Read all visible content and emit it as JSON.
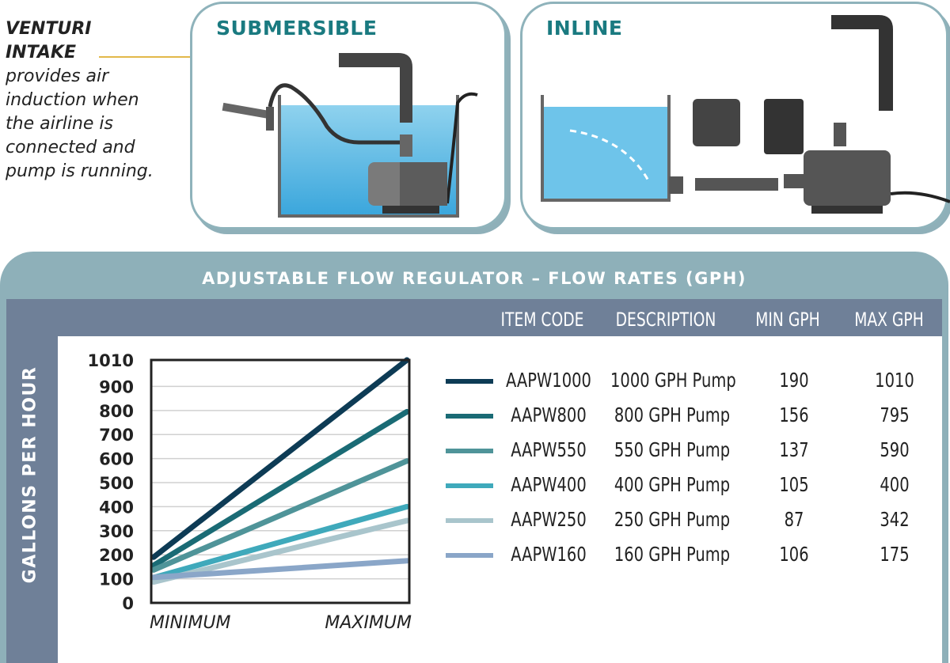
{
  "venturi": {
    "title_line1": "VENTURI",
    "title_line2": "INTAKE",
    "description": "provides air induction when the airline is connected and pump is running."
  },
  "panels": {
    "submersible": "SUBMERSIBLE",
    "inline": "INLINE"
  },
  "colors": {
    "heading": "#1a7a80",
    "outer": "#8eb0b9",
    "band": "#6f8098",
    "callout": "#e2b84a"
  },
  "table": {
    "title": "ADJUSTABLE FLOW REGULATOR – FLOW RATES (GPH)",
    "headers": [
      "ITEM CODE",
      "DESCRIPTION",
      "MIN GPH",
      "MAX GPH"
    ],
    "rows": [
      {
        "code": "AAPW1000",
        "description": "1000 GPH Pump",
        "min": "190",
        "max": "1010",
        "color": "#0d3b55"
      },
      {
        "code": "AAPW800",
        "description": "800 GPH Pump",
        "min": "156",
        "max": "795",
        "color": "#1a6b75"
      },
      {
        "code": "AAPW550",
        "description": "550 GPH Pump",
        "min": "137",
        "max": "590",
        "color": "#4f9499"
      },
      {
        "code": "AAPW400",
        "description": "400 GPH Pump",
        "min": "105",
        "max": "400",
        "color": "#3fa9bb"
      },
      {
        "code": "AAPW250",
        "description": "250 GPH Pump",
        "min": "87",
        "max": "342",
        "color": "#a9c5cc"
      },
      {
        "code": "AAPW160",
        "description": "160 GPH Pump",
        "min": "106",
        "max": "175",
        "color": "#8aa6c8"
      }
    ]
  },
  "chart_data": {
    "type": "line",
    "title": "",
    "ylabel": "GALLONS PER HOUR",
    "xlabel": "",
    "categories": [
      "MINIMUM",
      "MAXIMUM"
    ],
    "yticks": [
      0,
      100,
      200,
      300,
      400,
      500,
      600,
      700,
      800,
      900,
      1010
    ],
    "ylim": [
      0,
      1010
    ],
    "grid": true,
    "series": [
      {
        "name": "AAPW1000",
        "values": [
          190,
          1010
        ],
        "color": "#0d3b55"
      },
      {
        "name": "AAPW800",
        "values": [
          156,
          795
        ],
        "color": "#1a6b75"
      },
      {
        "name": "AAPW550",
        "values": [
          137,
          590
        ],
        "color": "#4f9499"
      },
      {
        "name": "AAPW400",
        "values": [
          105,
          400
        ],
        "color": "#3fa9bb"
      },
      {
        "name": "AAPW250",
        "values": [
          87,
          342
        ],
        "color": "#a9c5cc"
      },
      {
        "name": "AAPW160",
        "values": [
          106,
          175
        ],
        "color": "#8aa6c8"
      }
    ]
  }
}
